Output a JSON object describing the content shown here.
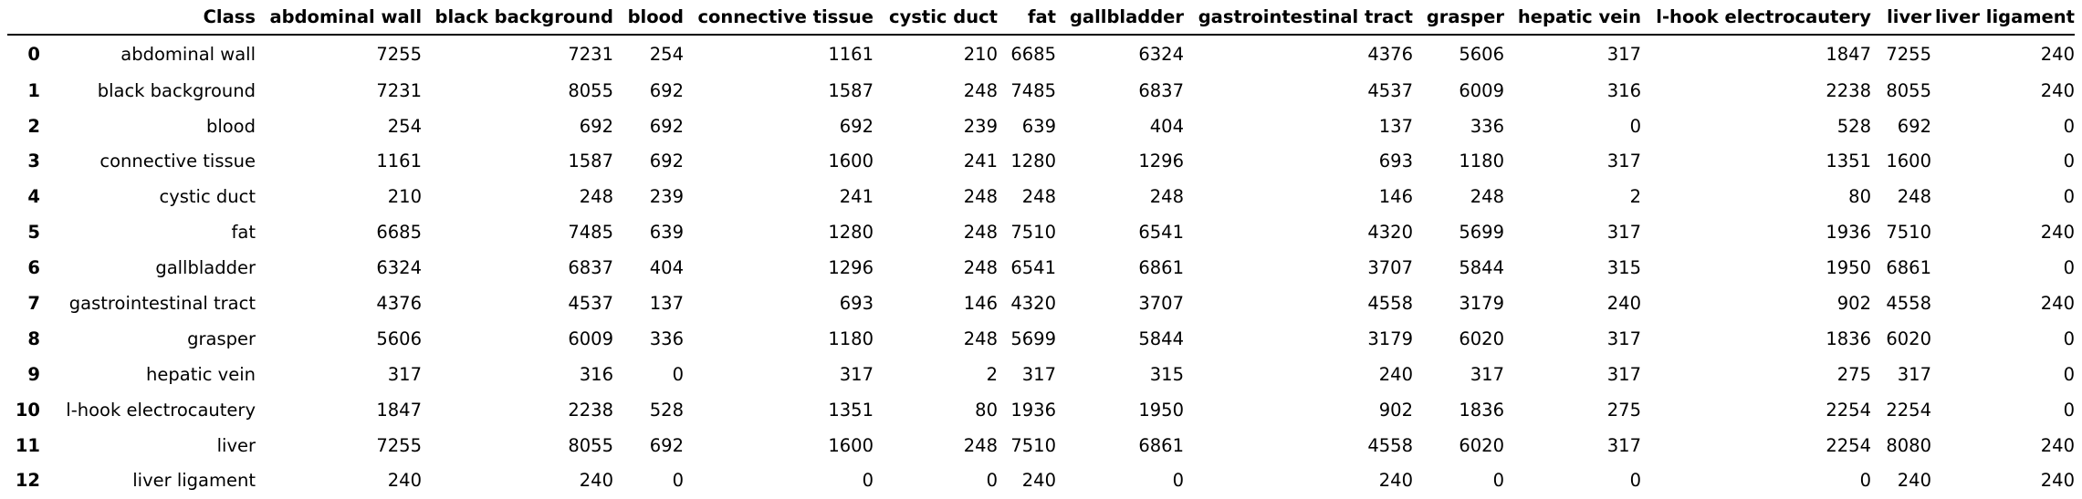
{
  "table": {
    "index_header": "",
    "columns": [
      "Class",
      "abdominal wall",
      "black background",
      "blood",
      "connective tissue",
      "cystic duct",
      "fat",
      "gallbladder",
      "gastrointestinal tract",
      "grasper",
      "hepatic vein",
      "l-hook electrocautery",
      "liver",
      "liver ligament"
    ],
    "rows": [
      {
        "index": "0",
        "cells": [
          "abdominal wall",
          "7255",
          "7231",
          "254",
          "1161",
          "210",
          "6685",
          "6324",
          "4376",
          "5606",
          "317",
          "1847",
          "7255",
          "240"
        ]
      },
      {
        "index": "1",
        "cells": [
          "black background",
          "7231",
          "8055",
          "692",
          "1587",
          "248",
          "7485",
          "6837",
          "4537",
          "6009",
          "316",
          "2238",
          "8055",
          "240"
        ]
      },
      {
        "index": "2",
        "cells": [
          "blood",
          "254",
          "692",
          "692",
          "692",
          "239",
          "639",
          "404",
          "137",
          "336",
          "0",
          "528",
          "692",
          "0"
        ]
      },
      {
        "index": "3",
        "cells": [
          "connective tissue",
          "1161",
          "1587",
          "692",
          "1600",
          "241",
          "1280",
          "1296",
          "693",
          "1180",
          "317",
          "1351",
          "1600",
          "0"
        ]
      },
      {
        "index": "4",
        "cells": [
          "cystic duct",
          "210",
          "248",
          "239",
          "241",
          "248",
          "248",
          "248",
          "146",
          "248",
          "2",
          "80",
          "248",
          "0"
        ]
      },
      {
        "index": "5",
        "cells": [
          "fat",
          "6685",
          "7485",
          "639",
          "1280",
          "248",
          "7510",
          "6541",
          "4320",
          "5699",
          "317",
          "1936",
          "7510",
          "240"
        ]
      },
      {
        "index": "6",
        "cells": [
          "gallbladder",
          "6324",
          "6837",
          "404",
          "1296",
          "248",
          "6541",
          "6861",
          "3707",
          "5844",
          "315",
          "1950",
          "6861",
          "0"
        ]
      },
      {
        "index": "7",
        "cells": [
          "gastrointestinal tract",
          "4376",
          "4537",
          "137",
          "693",
          "146",
          "4320",
          "3707",
          "4558",
          "3179",
          "240",
          "902",
          "4558",
          "240"
        ]
      },
      {
        "index": "8",
        "cells": [
          "grasper",
          "5606",
          "6009",
          "336",
          "1180",
          "248",
          "5699",
          "5844",
          "3179",
          "6020",
          "317",
          "1836",
          "6020",
          "0"
        ]
      },
      {
        "index": "9",
        "cells": [
          "hepatic vein",
          "317",
          "316",
          "0",
          "317",
          "2",
          "317",
          "315",
          "240",
          "317",
          "317",
          "275",
          "317",
          "0"
        ]
      },
      {
        "index": "10",
        "cells": [
          "l-hook electrocautery",
          "1847",
          "2238",
          "528",
          "1351",
          "80",
          "1936",
          "1950",
          "902",
          "1836",
          "275",
          "2254",
          "2254",
          "0"
        ]
      },
      {
        "index": "11",
        "cells": [
          "liver",
          "7255",
          "8055",
          "692",
          "1600",
          "248",
          "7510",
          "6861",
          "4558",
          "6020",
          "317",
          "2254",
          "8080",
          "240"
        ]
      },
      {
        "index": "12",
        "cells": [
          "liver ligament",
          "240",
          "240",
          "0",
          "0",
          "0",
          "240",
          "0",
          "240",
          "0",
          "0",
          "0",
          "240",
          "240"
        ]
      }
    ]
  }
}
